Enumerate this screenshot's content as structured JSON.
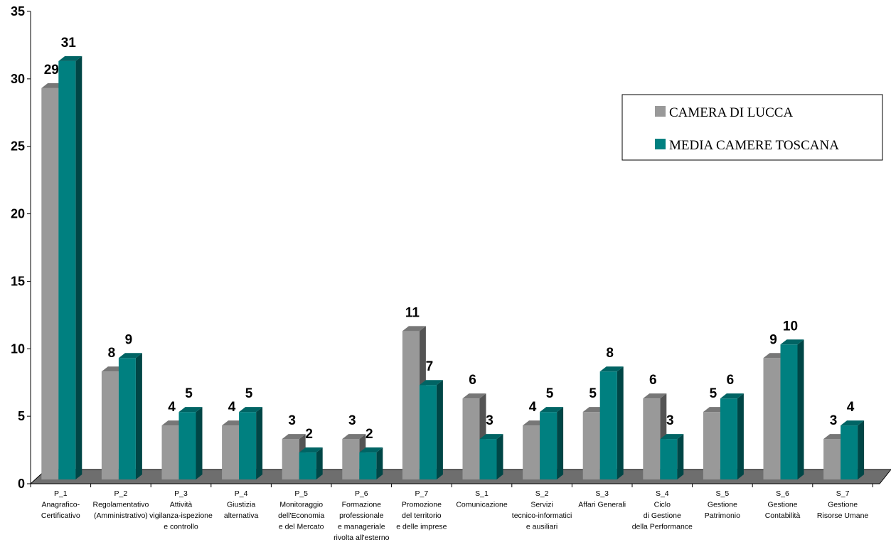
{
  "chart_data": {
    "type": "bar",
    "title": "",
    "xlabel": "",
    "ylabel": "",
    "ylim": [
      0,
      35
    ],
    "yticks": [
      0,
      5,
      10,
      15,
      20,
      25,
      30,
      35
    ],
    "grid": false,
    "legend_position": "right",
    "categories": [
      [
        "P_1",
        "Anagrafico-",
        "Certificativo"
      ],
      [
        "P_2",
        "Regolamentativo",
        "(Amministrativo)"
      ],
      [
        "P_3",
        "Attività",
        "vigilanza-ispezione",
        "",
        "e controllo"
      ],
      [
        "P_4",
        "Giustizia",
        "alternativa"
      ],
      [
        "P_5",
        "Monitoraggio",
        "dell'Economia",
        "e del Mercato"
      ],
      [
        "P_6",
        "Formazione",
        "professionale",
        "e manageriale",
        "rivolta all'esterno"
      ],
      [
        "P_7",
        "Promozione",
        "del territorio",
        "e delle imprese"
      ],
      [
        "S_1",
        "Comunicazione"
      ],
      [
        "S_2",
        "Servizi",
        "tecnico-informatici",
        "e ausiliari"
      ],
      [
        "S_3",
        "Affari Generali"
      ],
      [
        "S_4",
        "Ciclo",
        "di Gestione",
        "della Performance"
      ],
      [
        "S_5",
        "Gestione",
        "Patrimonio"
      ],
      [
        "S_6",
        "Gestione",
        "Contabilità"
      ],
      [
        "S_7",
        "Gestione",
        "Risorse Umane"
      ]
    ],
    "series": [
      {
        "name": "CAMERA DI LUCCA",
        "color": "#999999",
        "values": [
          29,
          8,
          4,
          4,
          3,
          3,
          11,
          6,
          4,
          5,
          6,
          5,
          9,
          3
        ]
      },
      {
        "name": "MEDIA CAMERE TOSCANA",
        "color": "#008080",
        "values": [
          31,
          9,
          5,
          5,
          2,
          2,
          7,
          3,
          5,
          8,
          3,
          6,
          10,
          4
        ]
      }
    ]
  }
}
